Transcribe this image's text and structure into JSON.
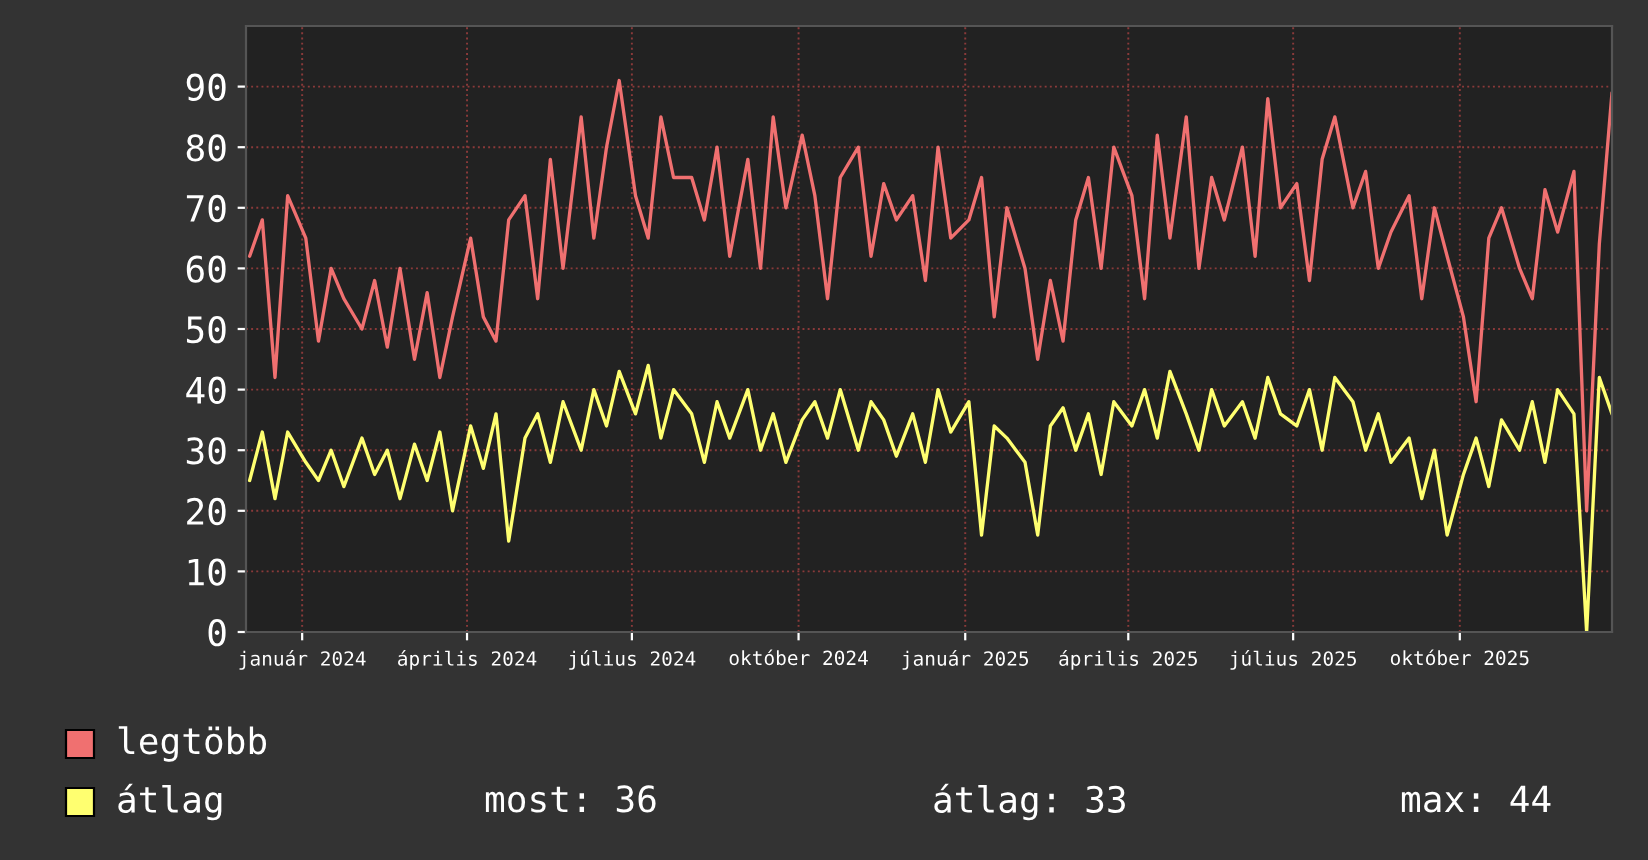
{
  "chart_data": {
    "type": "line",
    "x": [
      "2023-12-03",
      "2023-12-10",
      "2023-12-17",
      "2023-12-24",
      "2024-01-03",
      "2024-01-10",
      "2024-01-17",
      "2024-01-24",
      "2024-02-03",
      "2024-02-10",
      "2024-02-17",
      "2024-02-24",
      "2024-03-03",
      "2024-03-10",
      "2024-03-17",
      "2024-03-24",
      "2024-04-03",
      "2024-04-10",
      "2024-04-17",
      "2024-04-24",
      "2024-05-03",
      "2024-05-10",
      "2024-05-17",
      "2024-05-24",
      "2024-06-03",
      "2024-06-10",
      "2024-06-17",
      "2024-06-24",
      "2024-07-03",
      "2024-07-10",
      "2024-07-17",
      "2024-07-24",
      "2024-08-03",
      "2024-08-10",
      "2024-08-17",
      "2024-08-24",
      "2024-09-03",
      "2024-09-10",
      "2024-09-17",
      "2024-09-24",
      "2024-10-03",
      "2024-10-10",
      "2024-10-17",
      "2024-10-24",
      "2024-11-03",
      "2024-11-10",
      "2024-11-17",
      "2024-11-24",
      "2024-12-03",
      "2024-12-10",
      "2024-12-17",
      "2024-12-24",
      "2025-01-03",
      "2025-01-10",
      "2025-01-17",
      "2025-01-24",
      "2025-02-03",
      "2025-02-10",
      "2025-02-17",
      "2025-02-24",
      "2025-03-03",
      "2025-03-10",
      "2025-03-17",
      "2025-03-24",
      "2025-04-03",
      "2025-04-10",
      "2025-04-17",
      "2025-04-24",
      "2025-05-03",
      "2025-05-10",
      "2025-05-17",
      "2025-05-24",
      "2025-06-03",
      "2025-06-10",
      "2025-06-17",
      "2025-06-24",
      "2025-07-03",
      "2025-07-10",
      "2025-07-17",
      "2025-07-24",
      "2025-08-03",
      "2025-08-10",
      "2025-08-17",
      "2025-08-24",
      "2025-09-03",
      "2025-09-10",
      "2025-09-17",
      "2025-09-24",
      "2025-10-03",
      "2025-10-10",
      "2025-10-17",
      "2025-10-24",
      "2025-11-03",
      "2025-11-10",
      "2025-11-17",
      "2025-11-24",
      "2025-12-03",
      "2025-12-10",
      "2025-12-17",
      "2025-12-24"
    ],
    "series": [
      {
        "name": "legtöbb",
        "color": "#f07070",
        "values": [
          62,
          68,
          42,
          72,
          65,
          48,
          60,
          55,
          50,
          58,
          47,
          60,
          45,
          56,
          42,
          52,
          65,
          52,
          48,
          68,
          72,
          55,
          78,
          60,
          85,
          65,
          80,
          91,
          72,
          65,
          85,
          75,
          75,
          68,
          80,
          62,
          78,
          60,
          85,
          70,
          82,
          72,
          55,
          75,
          80,
          62,
          74,
          68,
          72,
          58,
          80,
          65,
          68,
          75,
          52,
          70,
          60,
          45,
          58,
          48,
          68,
          75,
          60,
          80,
          72,
          55,
          82,
          65,
          85,
          60,
          75,
          68,
          80,
          62,
          88,
          70,
          74,
          58,
          78,
          85,
          70,
          76,
          60,
          66,
          72,
          55,
          70,
          62,
          52,
          38,
          65,
          70,
          60,
          55,
          73,
          66,
          76,
          20,
          64,
          89
        ]
      },
      {
        "name": "átlag",
        "color": "#ffff70",
        "values": [
          25,
          33,
          22,
          33,
          28,
          25,
          30,
          24,
          32,
          26,
          30,
          22,
          31,
          25,
          33,
          20,
          34,
          27,
          36,
          15,
          32,
          36,
          28,
          38,
          30,
          40,
          34,
          43,
          36,
          44,
          32,
          40,
          36,
          28,
          38,
          32,
          40,
          30,
          36,
          28,
          35,
          38,
          32,
          40,
          30,
          38,
          35,
          29,
          36,
          28,
          40,
          33,
          38,
          16,
          34,
          32,
          28,
          16,
          34,
          37,
          30,
          36,
          26,
          38,
          34,
          40,
          32,
          43,
          36,
          30,
          40,
          34,
          38,
          32,
          42,
          36,
          34,
          40,
          30,
          42,
          38,
          30,
          36,
          28,
          32,
          22,
          30,
          16,
          26,
          32,
          24,
          35,
          30,
          38,
          28,
          40,
          36,
          0,
          42,
          36
        ]
      }
    ],
    "xlim": [
      "2023-12-01",
      "2025-12-24"
    ],
    "xticks": [
      {
        "value": "2024-01-01",
        "label": "január 2024"
      },
      {
        "value": "2024-04-01",
        "label": "április 2024"
      },
      {
        "value": "2024-07-01",
        "label": "július 2024"
      },
      {
        "value": "2024-10-01",
        "label": "október 2024"
      },
      {
        "value": "2025-01-01",
        "label": "január 2025"
      },
      {
        "value": "2025-04-01",
        "label": "április 2025"
      },
      {
        "value": "2025-07-01",
        "label": "július 2025"
      },
      {
        "value": "2025-10-01",
        "label": "október 2025"
      }
    ],
    "ylim": [
      0,
      100
    ],
    "yticks": [
      0,
      10,
      20,
      30,
      40,
      50,
      60,
      70,
      80,
      90
    ],
    "grid": true,
    "legend": "bottom",
    "marker": "none",
    "line_style": "solid",
    "annotations": [
      "most: 36",
      "átlag: 33",
      "max: 44"
    ]
  }
}
